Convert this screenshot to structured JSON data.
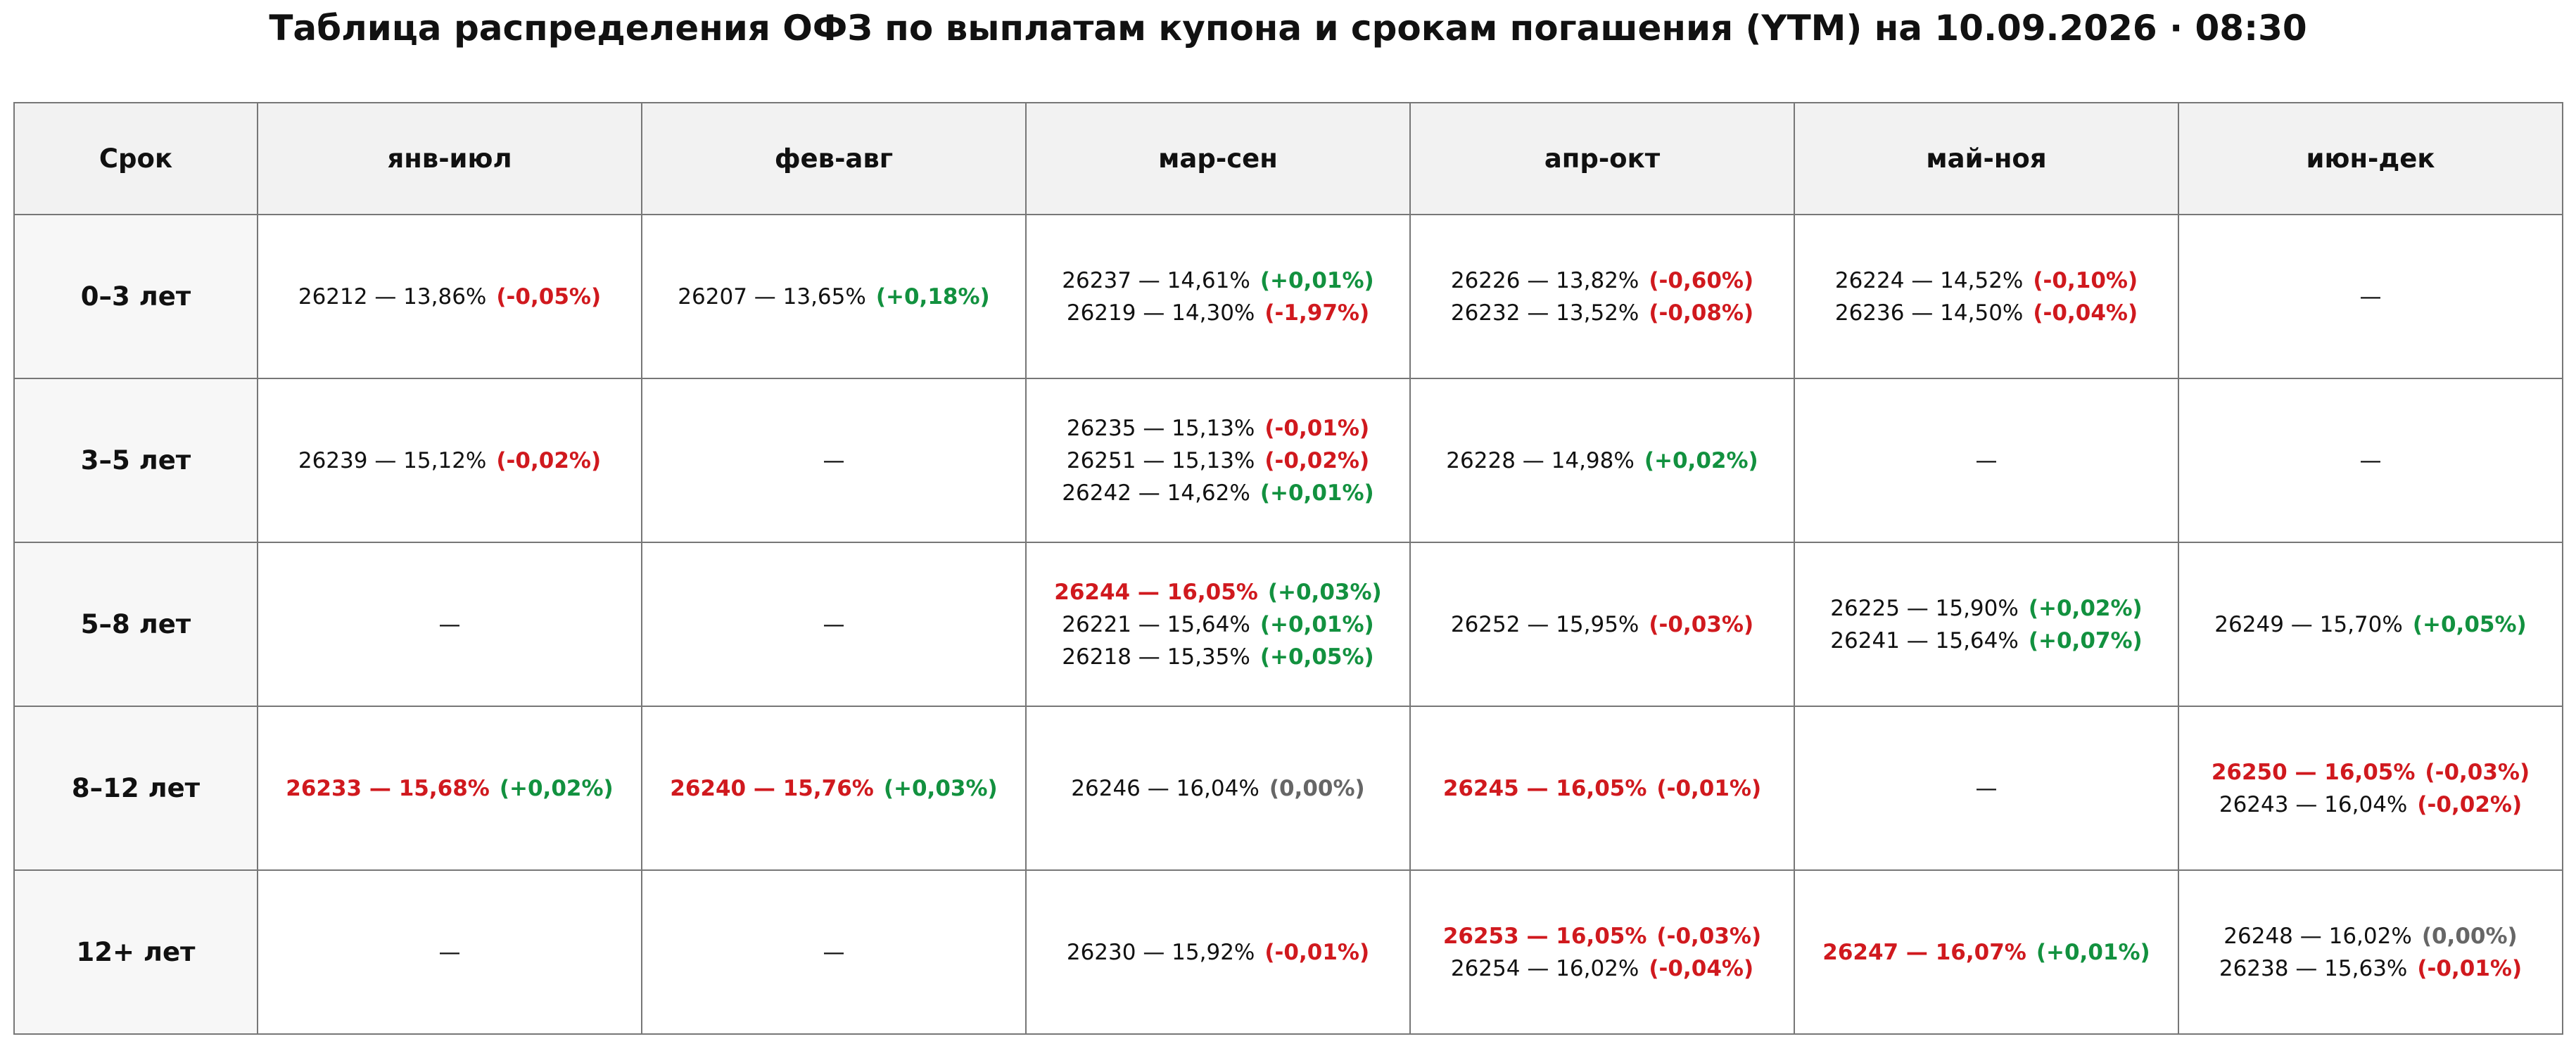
{
  "title": "Таблица распределения ОФЗ по выплатам купона и срокам погашения (YTM) на 10.09.2026 · 08:30",
  "colors": {
    "negative": "#d0191e",
    "positive": "#12913f",
    "zero": "#666666",
    "highlight": "#d0191e"
  },
  "table": {
    "columns": [
      "Срок",
      "янв-июл",
      "фев-авг",
      "мар-сен",
      "апр-окт",
      "май-ноя",
      "июн-дек"
    ],
    "rows": [
      {
        "label": "0–3 лет",
        "cells": [
          [
            {
              "bond": "26212 — 13,86%",
              "change": "(-0,05%)"
            }
          ],
          [
            {
              "bond": "26207 — 13,65%",
              "change": "(+0,18%)"
            }
          ],
          [
            {
              "bond": "26237 — 14,61%",
              "change": "(+0,01%)"
            },
            {
              "bond": "26219 — 14,30%",
              "change": "(-1,97%)"
            }
          ],
          [
            {
              "bond": "26226 — 13,82%",
              "change": "(-0,60%)"
            },
            {
              "bond": "26232 — 13,52%",
              "change": "(-0,08%)"
            }
          ],
          [
            {
              "bond": "26224 — 14,52%",
              "change": "(-0,10%)"
            },
            {
              "bond": "26236 — 14,50%",
              "change": "(-0,04%)"
            }
          ],
          "—"
        ]
      },
      {
        "label": "3–5 лет",
        "cells": [
          [
            {
              "bond": "26239 — 15,12%",
              "change": "(-0,02%)"
            }
          ],
          "—",
          [
            {
              "bond": "26235 — 15,13%",
              "change": "(-0,01%)"
            },
            {
              "bond": "26251 — 15,13%",
              "change": "(-0,02%)"
            },
            {
              "bond": "26242 — 14,62%",
              "change": "(+0,01%)"
            }
          ],
          [
            {
              "bond": "26228 — 14,98%",
              "change": "(+0,02%)"
            }
          ],
          "—",
          "—"
        ]
      },
      {
        "label": "5–8 лет",
        "cells": [
          "—",
          "—",
          [
            {
              "bond": "26244 — 16,05%",
              "change": "(+0,03%)",
              "highlight": true
            },
            {
              "bond": "26221 — 15,64%",
              "change": "(+0,01%)"
            },
            {
              "bond": "26218 — 15,35%",
              "change": "(+0,05%)"
            }
          ],
          [
            {
              "bond": "26252 — 15,95%",
              "change": "(-0,03%)"
            }
          ],
          [
            {
              "bond": "26225 — 15,90%",
              "change": "(+0,02%)"
            },
            {
              "bond": "26241 — 15,64%",
              "change": "(+0,07%)"
            }
          ],
          [
            {
              "bond": "26249 — 15,70%",
              "change": "(+0,05%)"
            }
          ]
        ]
      },
      {
        "label": "8–12 лет",
        "cells": [
          [
            {
              "bond": "26233 — 15,68%",
              "change": "(+0,02%)",
              "highlight": true
            }
          ],
          [
            {
              "bond": "26240 — 15,76%",
              "change": "(+0,03%)",
              "highlight": true
            }
          ],
          [
            {
              "bond": "26246 — 16,04%",
              "change": "(0,00%)"
            }
          ],
          [
            {
              "bond": "26245 — 16,05%",
              "change": "(-0,01%)",
              "highlight": true
            }
          ],
          "—",
          [
            {
              "bond": "26250 — 16,05%",
              "change": "(-0,03%)",
              "highlight": true
            },
            {
              "bond": "26243 — 16,04%",
              "change": "(-0,02%)"
            }
          ]
        ]
      },
      {
        "label": "12+ лет",
        "cells": [
          "—",
          "—",
          [
            {
              "bond": "26230 — 15,92%",
              "change": "(-0,01%)"
            }
          ],
          [
            {
              "bond": "26253 — 16,05%",
              "change": "(-0,03%)",
              "highlight": true
            },
            {
              "bond": "26254 — 16,02%",
              "change": "(-0,04%)"
            }
          ],
          [
            {
              "bond": "26247 — 16,07%",
              "change": "(+0,01%)",
              "highlight": true
            }
          ],
          [
            {
              "bond": "26248 — 16,02%",
              "change": "(0,00%)"
            },
            {
              "bond": "26238 — 15,63%",
              "change": "(-0,01%)"
            }
          ]
        ]
      }
    ]
  }
}
